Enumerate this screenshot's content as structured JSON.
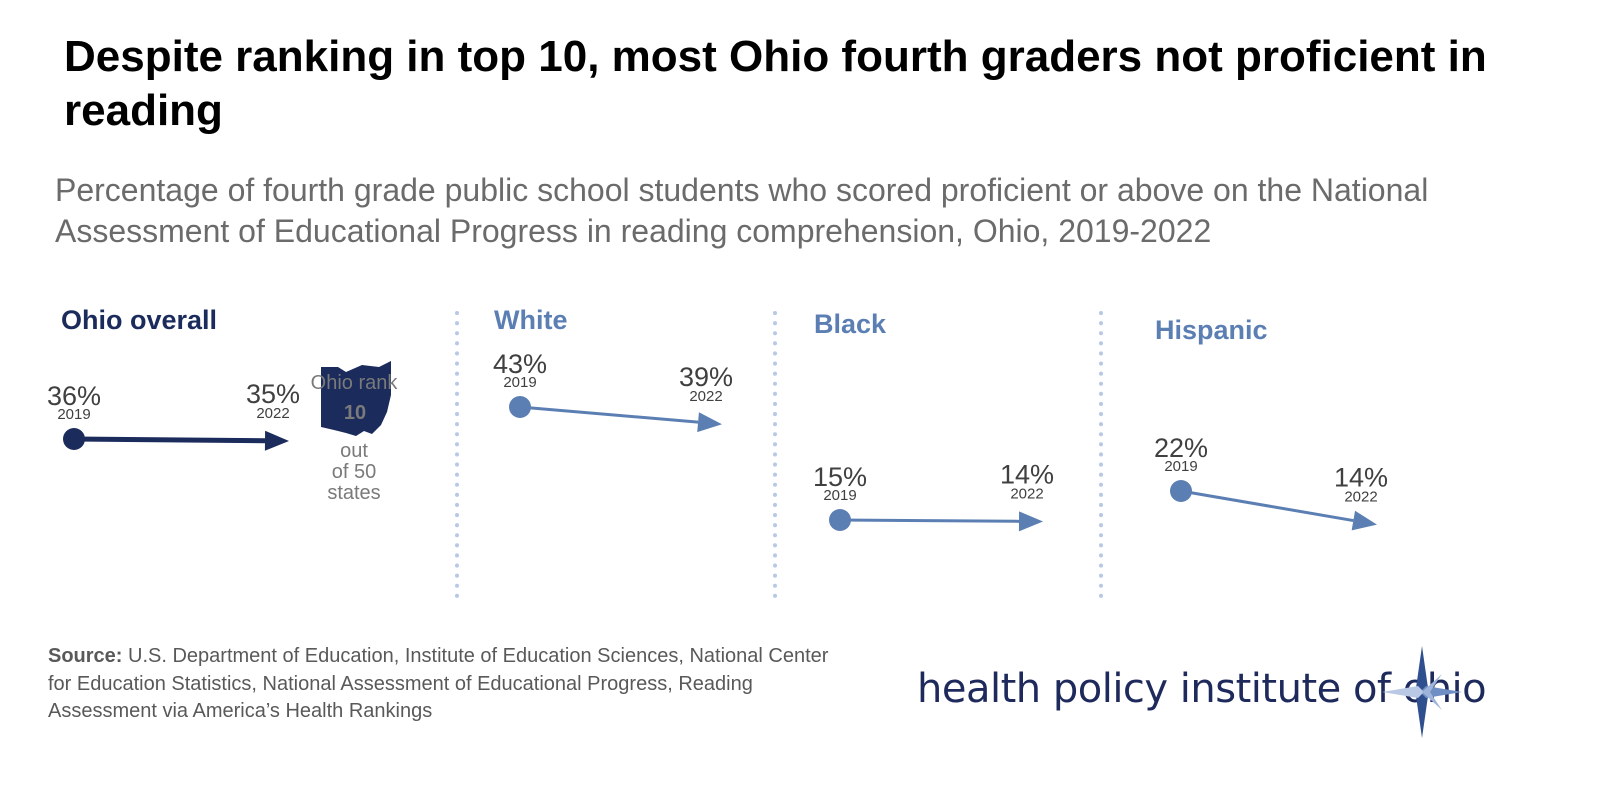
{
  "title": "Despite ranking in top 10, most Ohio fourth graders not proficient in reading",
  "subtitle": "Percentage of fourth grade public school students who scored proficient or above on the National Assessment of Educational Progress in reading comprehension, Ohio, 2019-2022",
  "colors": {
    "ohio": "#1a2b5c",
    "subgroup": "#5b7fb3",
    "divider": "#b8c9e6"
  },
  "chart_data": {
    "type": "line",
    "x": [
      "2019",
      "2022"
    ],
    "series": [
      {
        "name": "Ohio overall",
        "values": [
          36,
          35
        ],
        "labels": [
          "36%",
          "35%"
        ]
      },
      {
        "name": "White",
        "values": [
          43,
          39
        ],
        "labels": [
          "43%",
          "39%"
        ]
      },
      {
        "name": "Black",
        "values": [
          15,
          14
        ],
        "labels": [
          "15%",
          "14%"
        ]
      },
      {
        "name": "Hispanic",
        "values": [
          22,
          14
        ],
        "labels": [
          "22%",
          "14%"
        ]
      }
    ],
    "ohio_rank": {
      "label": "Ohio rank",
      "value": "10",
      "caption": [
        "out",
        "of 50",
        "states"
      ]
    }
  },
  "source": {
    "label": "Source:",
    "text": "U.S. Department of Education, Institute of Education Sciences, National Center for Education Statistics, National Assessment of Educational Progress, Reading Assessment via America’s Health Rankings"
  },
  "logo": {
    "text": "health policy institute of ohio",
    "icon": "compass-star-icon"
  }
}
